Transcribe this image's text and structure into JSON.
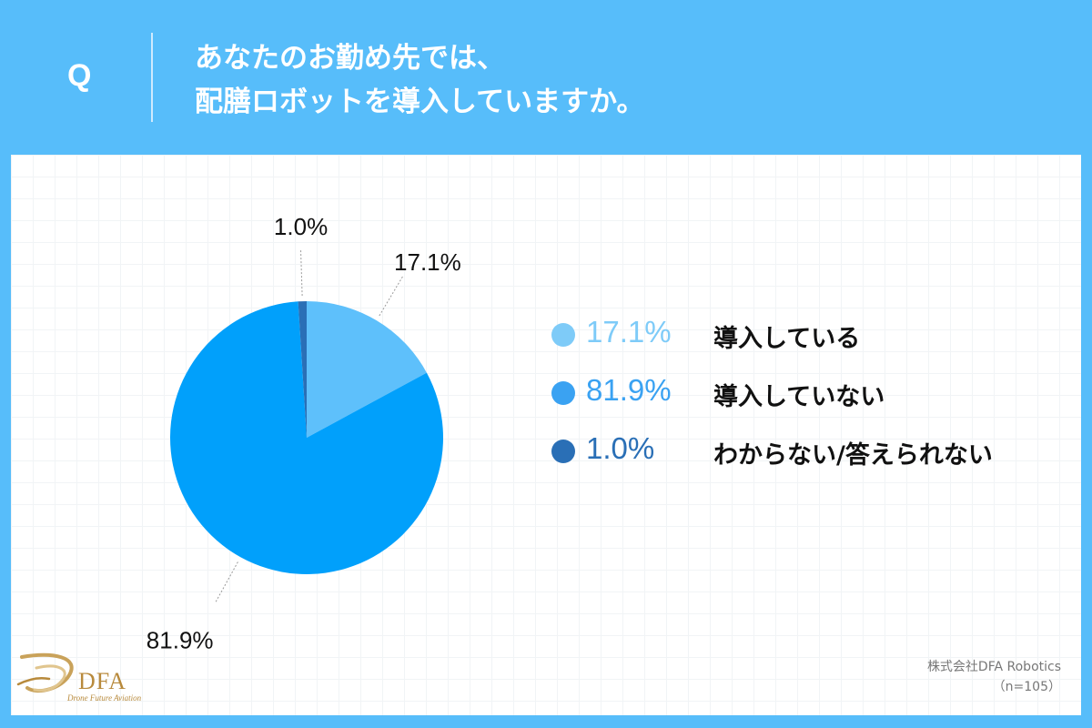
{
  "header": {
    "q_mark": "Q",
    "question_line1": "あなたのお勤め先では、",
    "question_line2": "配膳ロボットを導入していますか。"
  },
  "colors": {
    "background": "#57bdfa",
    "card": "#ffffff",
    "grid": "#f1f4f6"
  },
  "chart_data": {
    "type": "pie",
    "start_angle_deg": 0,
    "direction": "clockwise",
    "slices": [
      {
        "label": "導入している",
        "value": 17.1,
        "display": "17.1%",
        "color": "#5ec0fb"
      },
      {
        "label": "導入していない",
        "value": 81.9,
        "display": "81.9%",
        "color": "#01a0fb"
      },
      {
        "label": "わからない/答えられない",
        "value": 1.0,
        "display": "1.0%",
        "color": "#2a6fb6"
      }
    ],
    "legend_placement": "right",
    "legend_colors": [
      "#7ecbf8",
      "#3aa2f2",
      "#2a6fb6"
    ]
  },
  "footer": {
    "logo_text": "DFA",
    "logo_subtext": "Drone Future Aviation",
    "company": "株式会社DFA Robotics",
    "sample": "（n=105）"
  }
}
